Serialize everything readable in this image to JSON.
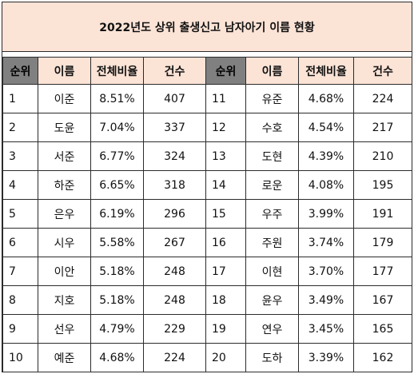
{
  "title": "2022년도 상위 출생신고 남자아기 이름 현황",
  "columns": [
    "순위",
    "이름",
    "전체비율",
    "건수",
    "순위",
    "이름",
    "전체비율",
    "건수"
  ],
  "rows": [
    {
      "left": {
        "rank": "1",
        "name": "이준",
        "ratio": "8.51%",
        "count": "407"
      },
      "right": {
        "rank": "11",
        "name": "유준",
        "ratio": "4.68%",
        "count": "224"
      }
    },
    {
      "left": {
        "rank": "2",
        "name": "도윤",
        "ratio": "7.04%",
        "count": "337"
      },
      "right": {
        "rank": "12",
        "name": "수호",
        "ratio": "4.54%",
        "count": "217"
      }
    },
    {
      "left": {
        "rank": "3",
        "name": "서준",
        "ratio": "6.77%",
        "count": "324"
      },
      "right": {
        "rank": "13",
        "name": "도현",
        "ratio": "4.39%",
        "count": "210"
      }
    },
    {
      "left": {
        "rank": "4",
        "name": "하준",
        "ratio": "6.65%",
        "count": "318"
      },
      "right": {
        "rank": "14",
        "name": "로운",
        "ratio": "4.08%",
        "count": "195"
      }
    },
    {
      "left": {
        "rank": "5",
        "name": "은우",
        "ratio": "6.19%",
        "count": "296"
      },
      "right": {
        "rank": "15",
        "name": "우주",
        "ratio": "3.99%",
        "count": "191"
      }
    },
    {
      "left": {
        "rank": "6",
        "name": "시우",
        "ratio": "5.58%",
        "count": "267"
      },
      "right": {
        "rank": "16",
        "name": "주원",
        "ratio": "3.74%",
        "count": "179"
      }
    },
    {
      "left": {
        "rank": "7",
        "name": "이안",
        "ratio": "5.18%",
        "count": "248"
      },
      "right": {
        "rank": "17",
        "name": "이현",
        "ratio": "3.70%",
        "count": "177"
      }
    },
    {
      "left": {
        "rank": "8",
        "name": "지호",
        "ratio": "5.18%",
        "count": "248"
      },
      "right": {
        "rank": "18",
        "name": "윤우",
        "ratio": "3.49%",
        "count": "167"
      }
    },
    {
      "left": {
        "rank": "9",
        "name": "선우",
        "ratio": "4.79%",
        "count": "229"
      },
      "right": {
        "rank": "19",
        "name": "연우",
        "ratio": "3.45%",
        "count": "165"
      }
    },
    {
      "left": {
        "rank": "10",
        "name": "예준",
        "ratio": "4.68%",
        "count": "224"
      },
      "right": {
        "rank": "20",
        "name": "도하",
        "ratio": "3.39%",
        "count": "162"
      }
    }
  ],
  "colors": {
    "title_background": "#fbe3d6",
    "header_background": "#fbe3d6",
    "rank_header_background": "#808080",
    "border": "#2b2b2b"
  }
}
